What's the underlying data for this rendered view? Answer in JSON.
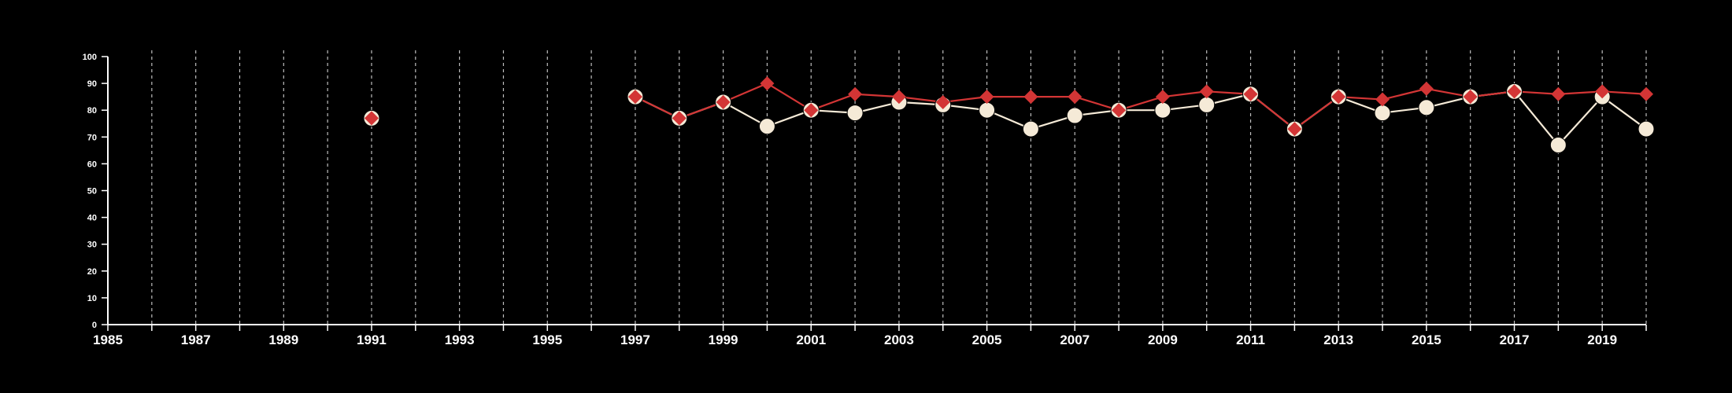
{
  "chart_data": {
    "type": "line",
    "title": "",
    "xlabel": "",
    "ylabel": "",
    "xlim": [
      1985,
      2020
    ],
    "ylim": [
      0,
      100
    ],
    "x_ticks": [
      1985,
      1987,
      1989,
      1991,
      1993,
      1995,
      1997,
      1999,
      2001,
      2003,
      2005,
      2007,
      2009,
      2011,
      2013,
      2015,
      2017,
      2019
    ],
    "y_ticks": [
      0,
      10,
      20,
      30,
      40,
      50,
      60,
      70,
      80,
      90,
      100
    ],
    "grid": "vertical dashed lines at yearly intervals",
    "legend": "none",
    "series": [
      {
        "marker": "circle",
        "color": "#f5ead7",
        "x": [
          1991,
          1997,
          1998,
          1999,
          2000,
          2001,
          2002,
          2003,
          2004,
          2005,
          2006,
          2007,
          2008,
          2009,
          2010,
          2011,
          2012,
          2013,
          2014,
          2015,
          2016,
          2017,
          2018,
          2019,
          2020
        ],
        "y": [
          77,
          85,
          77,
          83,
          74,
          80,
          79,
          83,
          82,
          80,
          73,
          78,
          80,
          80,
          82,
          86,
          73,
          85,
          79,
          81,
          85,
          87,
          67,
          85,
          73
        ]
      },
      {
        "marker": "diamond",
        "color": "#d33535",
        "x": [
          1991,
          1997,
          1998,
          1999,
          2000,
          2001,
          2002,
          2003,
          2004,
          2005,
          2006,
          2007,
          2008,
          2009,
          2010,
          2011,
          2012,
          2013,
          2014,
          2015,
          2016,
          2017,
          2018,
          2019,
          2020
        ],
        "y": [
          77,
          85,
          77,
          83,
          90,
          80,
          86,
          85,
          83,
          85,
          85,
          85,
          80,
          85,
          87,
          86,
          73,
          85,
          84,
          88,
          85,
          87,
          86,
          87,
          86
        ]
      }
    ],
    "colors": {
      "background": "#000000",
      "axis": "#ffffff",
      "grid": "#bdbdbd"
    }
  }
}
